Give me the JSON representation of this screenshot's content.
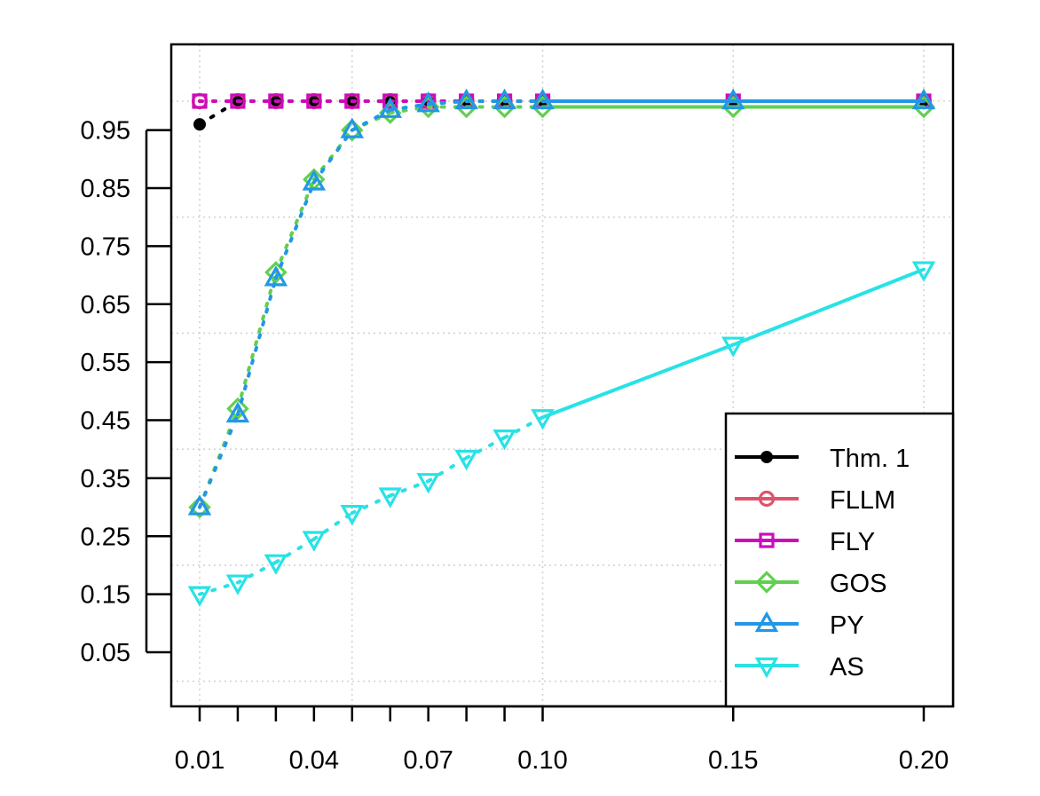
{
  "chart_data": {
    "type": "line",
    "x": [
      0.01,
      0.02,
      0.03,
      0.04,
      0.05,
      0.06,
      0.07,
      0.08,
      0.09,
      0.1,
      0.15,
      0.2
    ],
    "xticks": [
      0.01,
      0.02,
      0.03,
      0.04,
      0.05,
      0.06,
      0.07,
      0.08,
      0.09,
      0.1,
      0.15,
      0.2
    ],
    "xtick_labels": [
      "0.01",
      "",
      "",
      "0.04",
      "",
      "",
      "0.07",
      "",
      "",
      "0.10",
      "0.15",
      "0.20"
    ],
    "yticks": [
      0.05,
      0.15,
      0.25,
      0.35,
      0.45,
      0.55,
      0.65,
      0.75,
      0.85,
      0.95
    ],
    "ytick_labels": [
      "0.05",
      "0.15",
      "0.25",
      "0.35",
      "0.45",
      "0.55",
      "0.65",
      "0.75",
      "0.85",
      "0.95"
    ],
    "ylim": [
      0.005,
      1.04
    ],
    "xlabel": "",
    "ylabel": "",
    "title": "",
    "grid": true,
    "legend_position": "bottom-right",
    "series": [
      {
        "name": "Thm. 1",
        "color": "#000000",
        "marker": "filled-circle",
        "values": [
          0.96,
          1.0,
          1.0,
          1.0,
          1.0,
          1.0,
          1.0,
          1.0,
          1.0,
          1.0,
          1.0,
          1.0
        ]
      },
      {
        "name": "FLLM",
        "color": "#DF536B",
        "marker": "open-circle",
        "values": [
          1.0,
          1.0,
          1.0,
          1.0,
          1.0,
          1.0,
          1.0,
          1.0,
          1.0,
          1.0,
          1.0,
          1.0
        ]
      },
      {
        "name": "FLY",
        "color": "#CD0BBC",
        "marker": "open-square",
        "values": [
          1.0,
          1.0,
          1.0,
          1.0,
          1.0,
          1.0,
          1.0,
          1.0,
          1.0,
          1.0,
          1.0,
          1.0
        ]
      },
      {
        "name": "GOS",
        "color": "#61D04F",
        "marker": "open-diamond",
        "values": [
          0.3,
          0.47,
          0.705,
          0.865,
          0.95,
          0.98,
          0.99,
          0.99,
          0.99,
          0.99,
          0.99,
          0.99
        ]
      },
      {
        "name": "PY",
        "color": "#2297E6",
        "marker": "open-triangle-up",
        "values": [
          0.3,
          0.46,
          0.695,
          0.86,
          0.95,
          0.985,
          0.995,
          1.0,
          1.0,
          1.0,
          1.0,
          1.0
        ]
      },
      {
        "name": "AS",
        "color": "#28E2E5",
        "marker": "open-triangle-down",
        "values": [
          0.15,
          0.17,
          0.205,
          0.245,
          0.29,
          0.32,
          0.345,
          0.385,
          0.42,
          0.455,
          0.58,
          0.71
        ]
      }
    ]
  }
}
